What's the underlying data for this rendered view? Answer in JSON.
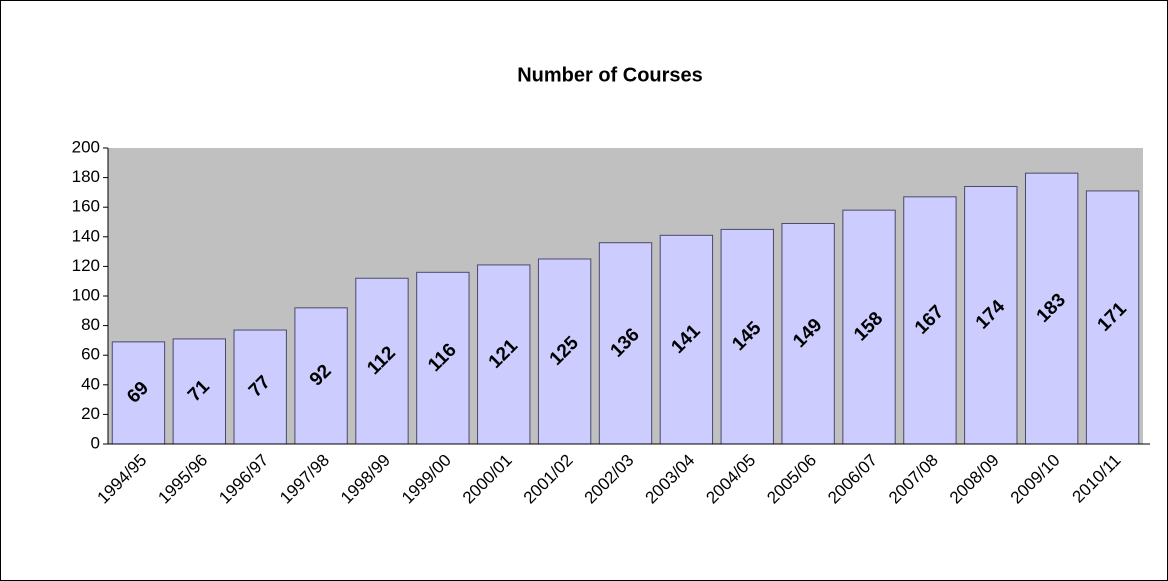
{
  "chart_data": {
    "type": "bar",
    "title": "Number of Courses",
    "categories": [
      "1994/95",
      "1995/96",
      "1996/97",
      "1997/98",
      "1998/99",
      "1999/00",
      "2000/01",
      "2001/02",
      "2002/03",
      "2003/04",
      "2004/05",
      "2005/06",
      "2006/07",
      "2007/08",
      "2008/09",
      "2009/10",
      "2010/11"
    ],
    "values": [
      69,
      71,
      77,
      92,
      112,
      116,
      121,
      125,
      136,
      141,
      145,
      149,
      158,
      167,
      174,
      183,
      171
    ],
    "color": "#ccccff",
    "ylim": [
      0,
      200
    ],
    "yticks": [
      0,
      20,
      40,
      60,
      80,
      100,
      120,
      140,
      160,
      180,
      200
    ],
    "grid": false
  }
}
